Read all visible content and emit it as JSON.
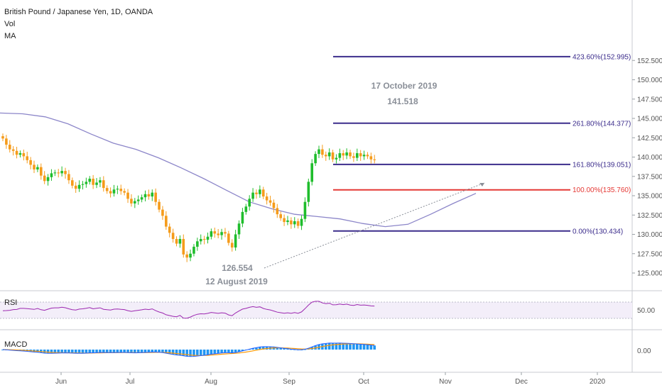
{
  "header": {
    "title": "British Pound / Japanese Yen, 1D, OANDA",
    "indicator_1": "Vol",
    "indicator_2": "MA"
  },
  "panels": {
    "rsi_label": "RSI",
    "macd_label": "MACD",
    "rsi_axis_value": "50.00",
    "macd_axis_value": "0.00"
  },
  "annotations": {
    "high_date": "17 October 2019",
    "high_value": "141.518",
    "low_value": "126.554",
    "low_date": "12 August 2019"
  },
  "colors": {
    "up": "#26a69a",
    "up_bright": "#1fbd2c",
    "down": "#f59b1a",
    "ma": "#8c86c9",
    "fib": "#3c2d8c",
    "fib_100": "#e53935",
    "rsi": "#9c27b0",
    "macd_hist": "#2196f3",
    "macd_signal": "#ff9800",
    "macd_line": "#2962ff"
  },
  "chart_data": {
    "type": "candlestick",
    "symbol": "GBPJPY",
    "ylim": [
      123.5,
      153.5
    ],
    "y_ticks": [
      "125.000",
      "127.500",
      "130.000",
      "132.500",
      "135.000",
      "137.500",
      "140.000",
      "142.500",
      "145.000",
      "147.500",
      "150.000",
      "152.500"
    ],
    "x_ticks": [
      "Jun",
      "Jul",
      "Aug",
      "Sep",
      "Oct",
      "Nov",
      "Dec",
      "2020"
    ],
    "fib_levels": [
      {
        "label": "0.00%(130.434)",
        "value": 130.434
      },
      {
        "label": "100.00%(135.760)",
        "value": 135.76
      },
      {
        "label": "161.80%(139.051)",
        "value": 139.051
      },
      {
        "label": "261.80%(144.377)",
        "value": 144.377
      },
      {
        "label": "423.60%(152.995)",
        "value": 152.995
      }
    ],
    "close_prices": [
      142.4,
      141.6,
      141.0,
      140.8,
      140.3,
      140.5,
      140.1,
      139.6,
      139.0,
      138.4,
      138.7,
      137.6,
      136.9,
      137.4,
      137.9,
      138.0,
      137.9,
      138.2,
      137.8,
      137.0,
      136.3,
      135.9,
      136.4,
      136.5,
      136.8,
      137.2,
      136.4,
      136.7,
      137.0,
      136.0,
      135.6,
      135.3,
      135.8,
      135.9,
      135.6,
      135.4,
      134.6,
      134.0,
      134.3,
      134.5,
      134.8,
      135.2,
      134.9,
      135.4,
      134.2,
      133.2,
      132.4,
      131.0,
      130.2,
      129.4,
      128.8,
      129.4,
      127.4,
      127.0,
      127.5,
      128.4,
      129.1,
      129.4,
      129.3,
      129.7,
      130.4,
      130.1,
      129.9,
      130.3,
      130.1,
      128.9,
      128.3,
      130.0,
      131.4,
      132.9,
      133.6,
      134.6,
      135.4,
      135.2,
      135.8,
      134.9,
      134.4,
      134.1,
      133.4,
      132.6,
      132.1,
      131.6,
      131.8,
      131.3,
      131.7,
      131.1,
      132.0,
      134.2,
      136.8,
      139.2,
      140.4,
      141.0,
      140.3,
      140.1,
      140.6,
      139.7,
      139.9,
      140.5,
      140.2,
      140.6,
      140.1,
      139.9,
      140.5,
      140.1,
      140.3,
      140.1,
      139.7,
      139.6
    ],
    "ma_points": [
      145.7,
      145.6,
      145.2,
      144.3,
      143.0,
      141.8,
      141.0,
      139.9,
      138.6,
      137.2,
      135.7,
      134.2,
      133.3,
      132.6,
      132.3,
      132.0,
      131.4,
      131.0,
      131.3,
      132.6,
      134.0,
      135.3
    ],
    "rsi": {
      "range": [
        0,
        100
      ],
      "level": 50
    },
    "macd": {
      "zero": 0
    }
  }
}
